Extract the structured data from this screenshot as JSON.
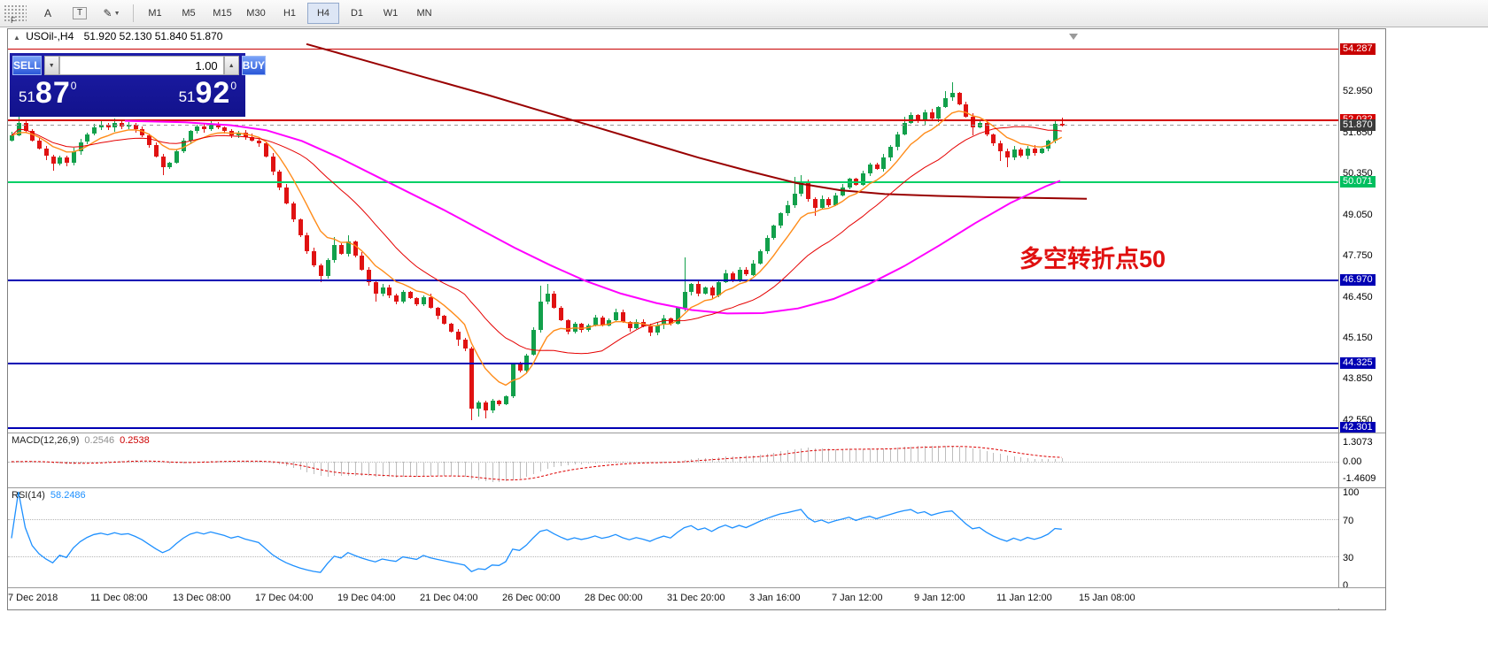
{
  "toolbar": {
    "f_label": "F",
    "annotate_letter": "A",
    "text_tool": "T",
    "draw_tool_icon": "pencil",
    "timeframes": [
      "M1",
      "M5",
      "M15",
      "M30",
      "H1",
      "H4",
      "D1",
      "W1",
      "MN"
    ],
    "active_timeframe": "H4"
  },
  "chart_header": {
    "symbol_period": "USOil-,H4",
    "ohlc": "51.920 52.130 51.840 51.870"
  },
  "trade_panel": {
    "sell_label": "SELL",
    "buy_label": "BUY",
    "volume": "1.00",
    "bid": {
      "whole": "51",
      "big": "87",
      "sup": "0"
    },
    "ask": {
      "whole": "51",
      "big": "92",
      "sup": "0"
    }
  },
  "annotation": {
    "text": "多空转折点50",
    "color": "#e01010"
  },
  "colors": {
    "up": "#12a04b",
    "down": "#e01212",
    "ma_long": "#990000",
    "ma_mid": "#ff00ff",
    "ma_fast": "#ff8c1a",
    "ma_slow": "#e50000",
    "macd_hist": "#bdbdbd",
    "macd_signal": "#dd0000",
    "rsi_line": "#1e90ff"
  },
  "price_axis": {
    "ticks": [
      "52.950",
      "51.650",
      "50.350",
      "49.050",
      "47.750",
      "46.450",
      "45.150",
      "43.850",
      "42.550"
    ]
  },
  "hlines": [
    {
      "p": 54.287,
      "t": "54.287",
      "color": "#c80000",
      "bg": "#c80000",
      "fg": "#ffffff",
      "w": 1,
      "dash": false
    },
    {
      "p": 52.032,
      "t": "52.032",
      "color": "#d40000",
      "bg": "#d40000",
      "fg": "#ffffff",
      "w": 2,
      "dash": false
    },
    {
      "p": 51.87,
      "t": "51.870",
      "color": "#9a9a9a",
      "bg": "#3c3c3c",
      "fg": "#ffffff",
      "w": 1,
      "dash": true
    },
    {
      "p": 50.071,
      "t": "50.071",
      "color": "#00d066",
      "bg": "#00bf5f",
      "fg": "#ffffff",
      "w": 2,
      "dash": false
    },
    {
      "p": 46.97,
      "t": "46.970",
      "color": "#0000b4",
      "bg": "#0000b4",
      "fg": "#ffffff",
      "w": 2,
      "dash": false
    },
    {
      "p": 44.325,
      "t": "44.325",
      "color": "#0000b4",
      "bg": "#0000b4",
      "fg": "#ffffff",
      "w": 2,
      "dash": false
    },
    {
      "p": 42.301,
      "t": "42.301",
      "color": "#0000b4",
      "bg": "#0000b4",
      "fg": "#ffffff",
      "w": 2,
      "dash": false
    }
  ],
  "time_axis": {
    "labels": [
      "7 Dec 2018",
      "11 Dec 08:00",
      "13 Dec 08:00",
      "17 Dec 04:00",
      "19 Dec 04:00",
      "21 Dec 04:00",
      "26 Dec 00:00",
      "28 Dec 00:00",
      "31 Dec 20:00",
      "3 Jan 16:00",
      "7 Jan 12:00",
      "9 Jan 12:00",
      "11 Jan 12:00",
      "15 Jan 08:00"
    ]
  },
  "macd": {
    "name": "MACD(12,26,9)",
    "main": "0.2546",
    "signal": "0.2538",
    "axis": [
      "1.3073",
      "0.00",
      "-1.4609"
    ]
  },
  "rsi": {
    "name": "RSI(14)",
    "value": "58.2486",
    "axis": [
      "100",
      "70",
      "30",
      "0"
    ]
  },
  "chart_data": {
    "type": "candlestick",
    "symbol": "USOil",
    "period": "H4",
    "last_ohlc": {
      "open": 51.92,
      "high": 52.13,
      "low": 51.84,
      "close": 51.87
    },
    "price_top": 54.5,
    "price_bottom": 42.15,
    "levels": [
      54.287,
      52.032,
      51.87,
      50.071,
      46.97,
      44.325,
      42.301
    ],
    "first_open": 51.4,
    "closes": [
      51.55,
      51.95,
      51.7,
      51.4,
      51.15,
      50.9,
      50.65,
      50.85,
      50.7,
      51.05,
      51.35,
      51.6,
      51.8,
      51.9,
      51.8,
      51.95,
      51.85,
      51.9,
      51.75,
      51.55,
      51.25,
      50.9,
      50.55,
      50.7,
      51.05,
      51.4,
      51.7,
      51.85,
      51.75,
      51.9,
      51.8,
      51.7,
      51.55,
      51.65,
      51.5,
      51.4,
      51.3,
      50.9,
      50.4,
      49.9,
      49.4,
      48.9,
      48.4,
      47.9,
      47.45,
      47.1,
      47.6,
      48.1,
      47.8,
      48.2,
      47.75,
      47.3,
      46.9,
      46.55,
      46.75,
      46.5,
      46.3,
      46.6,
      46.4,
      46.2,
      46.45,
      46.1,
      45.85,
      45.6,
      45.35,
      45.1,
      44.8,
      42.9,
      43.1,
      42.85,
      43.15,
      43.05,
      43.3,
      44.3,
      44.1,
      44.6,
      45.4,
      46.3,
      46.55,
      46.1,
      45.7,
      45.35,
      45.6,
      45.4,
      45.55,
      45.8,
      45.55,
      45.7,
      45.95,
      45.65,
      45.45,
      45.65,
      45.5,
      45.3,
      45.55,
      45.75,
      45.6,
      46.1,
      46.6,
      46.85,
      46.55,
      46.75,
      46.5,
      46.9,
      47.2,
      47.0,
      47.3,
      47.15,
      47.5,
      47.9,
      48.3,
      48.7,
      49.1,
      49.35,
      49.7,
      50.05,
      49.55,
      49.25,
      49.55,
      49.35,
      49.65,
      49.9,
      50.2,
      50.0,
      50.35,
      50.65,
      50.5,
      50.85,
      51.2,
      51.6,
      51.95,
      52.2,
      52.0,
      52.3,
      52.1,
      52.45,
      52.75,
      52.9,
      52.55,
      52.15,
      51.8,
      51.95,
      51.6,
      51.3,
      51.05,
      50.85,
      51.1,
      50.9,
      51.15,
      51.0,
      51.15,
      51.4,
      51.92,
      51.87
    ],
    "overrides": {
      "1": {
        "h": 52.15
      },
      "6": {
        "l": 50.45
      },
      "15": {
        "h": 52.1
      },
      "22": {
        "l": 50.3
      },
      "45": {
        "l": 46.9
      },
      "47": {
        "h": 48.35
      },
      "49": {
        "h": 48.4
      },
      "53": {
        "l": 46.3
      },
      "65": {
        "l": 44.9
      },
      "67": {
        "l": 42.55
      },
      "68": {
        "l": 42.65
      },
      "69": {
        "l": 42.6
      },
      "77": {
        "h": 46.8
      },
      "78": {
        "h": 46.85
      },
      "98": {
        "h": 47.7
      },
      "113": {
        "h": 49.5
      },
      "114": {
        "h": 50.25
      },
      "115": {
        "h": 50.3
      },
      "117": {
        "l": 49.0
      },
      "130": {
        "h": 52.15
      },
      "136": {
        "h": 52.95
      },
      "137": {
        "h": 53.25
      },
      "140": {
        "l": 51.55
      },
      "144": {
        "l": 50.75
      },
      "145": {
        "l": 50.55
      },
      "153": {
        "o": 51.92,
        "h": 52.13,
        "l": 51.84
      }
    },
    "ma_long_darkred": [
      [
        337,
        54.45
      ],
      [
        400,
        53.95
      ],
      [
        470,
        53.4
      ],
      [
        540,
        52.85
      ],
      [
        600,
        52.35
      ],
      [
        660,
        51.85
      ],
      [
        720,
        51.35
      ],
      [
        780,
        50.85
      ],
      [
        840,
        50.4
      ],
      [
        890,
        50.05
      ],
      [
        940,
        49.82
      ],
      [
        990,
        49.7
      ],
      [
        1050,
        49.64
      ],
      [
        1110,
        49.6
      ],
      [
        1160,
        49.58
      ],
      [
        1218,
        49.55
      ]
    ],
    "ma_mid_magenta": [
      [
        132,
        52.02
      ],
      [
        200,
        51.97
      ],
      [
        252,
        51.88
      ],
      [
        292,
        51.72
      ],
      [
        332,
        51.38
      ],
      [
        372,
        50.88
      ],
      [
        412,
        50.32
      ],
      [
        452,
        49.76
      ],
      [
        492,
        49.2
      ],
      [
        532,
        48.6
      ],
      [
        572,
        48.0
      ],
      [
        612,
        47.45
      ],
      [
        652,
        46.95
      ],
      [
        692,
        46.55
      ],
      [
        732,
        46.25
      ],
      [
        772,
        46.03
      ],
      [
        812,
        45.92
      ],
      [
        852,
        45.93
      ],
      [
        892,
        46.08
      ],
      [
        932,
        46.38
      ],
      [
        972,
        46.85
      ],
      [
        1012,
        47.42
      ],
      [
        1052,
        48.08
      ],
      [
        1092,
        48.78
      ],
      [
        1132,
        49.42
      ],
      [
        1172,
        49.95
      ],
      [
        1188,
        50.12
      ]
    ],
    "ema_fast_period": 8,
    "sma_slow_period": 20,
    "macd_axis_range": [
      -1.4609,
      1.3073
    ],
    "rsi_levels": [
      70,
      30
    ]
  }
}
